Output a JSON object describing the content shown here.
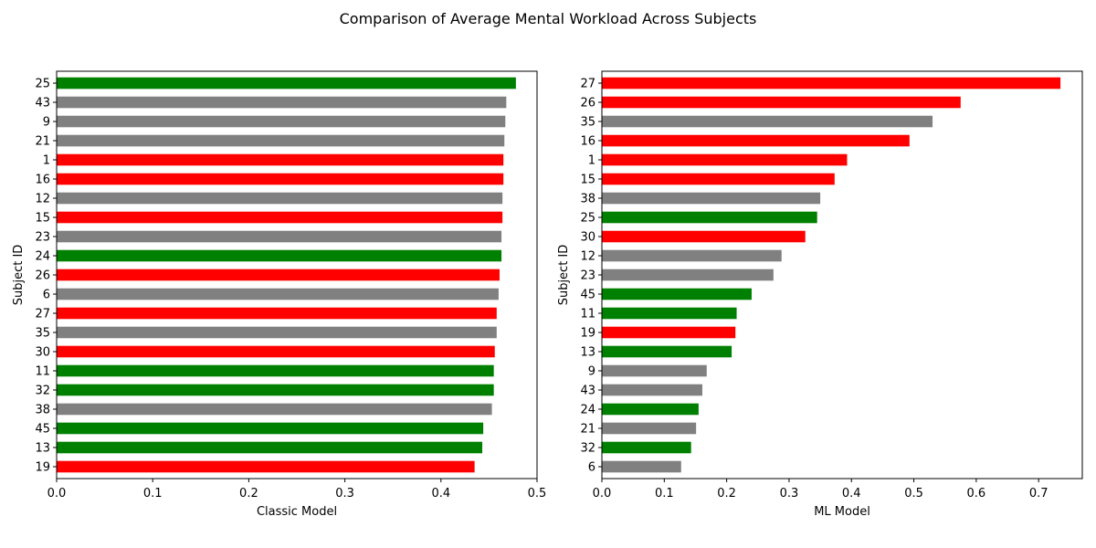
{
  "figure": {
    "suptitle": "Comparison of Average Mental Workload Across Subjects"
  },
  "chart_data": [
    {
      "type": "bar",
      "orientation": "horizontal",
      "xlabel": "Classic Model",
      "ylabel": "Subject ID",
      "xlim": [
        0,
        0.5
      ],
      "xticks": [
        "0.0",
        "0.1",
        "0.2",
        "0.3",
        "0.4",
        "0.5"
      ],
      "grid": false,
      "categories": [
        "25",
        "43",
        "9",
        "21",
        "1",
        "16",
        "12",
        "15",
        "23",
        "24",
        "26",
        "6",
        "27",
        "35",
        "30",
        "11",
        "32",
        "38",
        "45",
        "13",
        "19"
      ],
      "values": [
        0.478,
        0.468,
        0.467,
        0.466,
        0.465,
        0.465,
        0.464,
        0.464,
        0.463,
        0.463,
        0.461,
        0.46,
        0.458,
        0.458,
        0.456,
        0.455,
        0.455,
        0.453,
        0.444,
        0.443,
        0.435
      ],
      "colors": [
        "#008000",
        "#808080",
        "#808080",
        "#808080",
        "#ff0000",
        "#ff0000",
        "#808080",
        "#ff0000",
        "#808080",
        "#008000",
        "#ff0000",
        "#808080",
        "#ff0000",
        "#808080",
        "#ff0000",
        "#008000",
        "#008000",
        "#808080",
        "#008000",
        "#008000",
        "#ff0000"
      ]
    },
    {
      "type": "bar",
      "orientation": "horizontal",
      "xlabel": "ML Model",
      "ylabel": "Subject ID",
      "xlim": [
        0,
        0.77
      ],
      "xticks": [
        "0.0",
        "0.1",
        "0.2",
        "0.3",
        "0.4",
        "0.5",
        "0.6",
        "0.7"
      ],
      "grid": false,
      "categories": [
        "27",
        "26",
        "35",
        "16",
        "1",
        "15",
        "38",
        "25",
        "30",
        "12",
        "23",
        "45",
        "11",
        "19",
        "13",
        "9",
        "43",
        "24",
        "21",
        "32",
        "6"
      ],
      "values": [
        0.735,
        0.575,
        0.53,
        0.493,
        0.393,
        0.373,
        0.35,
        0.345,
        0.326,
        0.288,
        0.275,
        0.24,
        0.216,
        0.214,
        0.208,
        0.168,
        0.161,
        0.155,
        0.151,
        0.143,
        0.127
      ],
      "colors": [
        "#ff0000",
        "#ff0000",
        "#808080",
        "#ff0000",
        "#ff0000",
        "#ff0000",
        "#808080",
        "#008000",
        "#ff0000",
        "#808080",
        "#808080",
        "#008000",
        "#008000",
        "#ff0000",
        "#008000",
        "#808080",
        "#808080",
        "#008000",
        "#808080",
        "#008000",
        "#808080"
      ]
    }
  ]
}
